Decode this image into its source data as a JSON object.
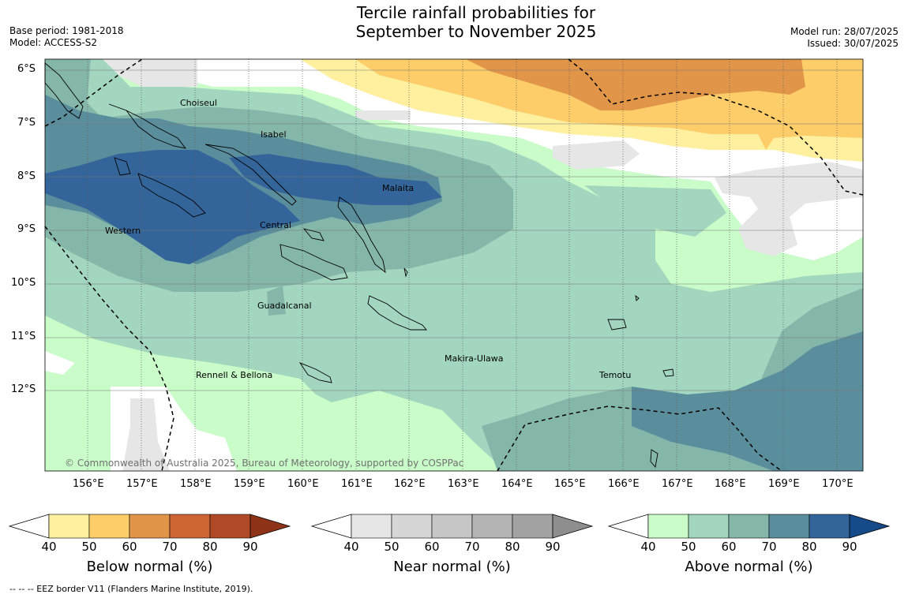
{
  "header": {
    "title_line1": "Tercile rainfall probabilities for",
    "title_line2": "September to November 2025",
    "base_period": "Base period: 1981-2018",
    "model": "Model: ACCESS-S2",
    "model_run": "Model run: 28/07/2025",
    "issued": "Issued: 30/07/2025"
  },
  "map": {
    "lat_labels": [
      "6°S",
      "7°S",
      "8°S",
      "9°S",
      "10°S",
      "11°S",
      "12°S"
    ],
    "lon_labels": [
      "156°E",
      "157°E",
      "158°E",
      "159°E",
      "160°E",
      "161°E",
      "162°E",
      "163°E",
      "164°E",
      "165°E",
      "166°E",
      "167°E",
      "168°E",
      "169°E",
      "170°E"
    ],
    "provinces": [
      "Choiseul",
      "Isabel",
      "Malaita",
      "Western",
      "Central",
      "Guadalcanal",
      "Makira-Ulawa",
      "Rennell & Bellona",
      "Temotu"
    ],
    "copyright": "© Commonwealth of Australia 2025, Bureau of Meteorology, supported by COSPPac"
  },
  "colorbars": [
    {
      "label": "Below normal (%)",
      "ticks": [
        "40",
        "50",
        "60",
        "70",
        "80",
        "90"
      ],
      "colors": [
        "#ffffff",
        "#fff0a0",
        "#fdcd6a",
        "#e09548",
        "#cd6434",
        "#b04a26",
        "#8f3318"
      ]
    },
    {
      "label": "Near normal (%)",
      "ticks": [
        "40",
        "50",
        "60",
        "70",
        "80",
        "90"
      ],
      "colors": [
        "#ffffff",
        "#e6e6e6",
        "#d6d6d6",
        "#c6c6c6",
        "#b4b4b4",
        "#a3a3a3",
        "#8e8e8e"
      ]
    },
    {
      "label": "Above normal (%)",
      "ticks": [
        "40",
        "50",
        "60",
        "70",
        "80",
        "90"
      ],
      "colors": [
        "#ffffff",
        "#c9fcc9",
        "#a2d6be",
        "#85b6aa",
        "#5a8e9c",
        "#33659a",
        "#164a88"
      ]
    }
  ],
  "footnote": "-- -- -- EEZ border V11 (Flanders Marine Institute, 2019).",
  "colors": {
    "below_normal": "#fdcd6a",
    "near_normal": "#e0e0e0",
    "above_normal": "#a2d6be",
    "border": "#000000"
  }
}
